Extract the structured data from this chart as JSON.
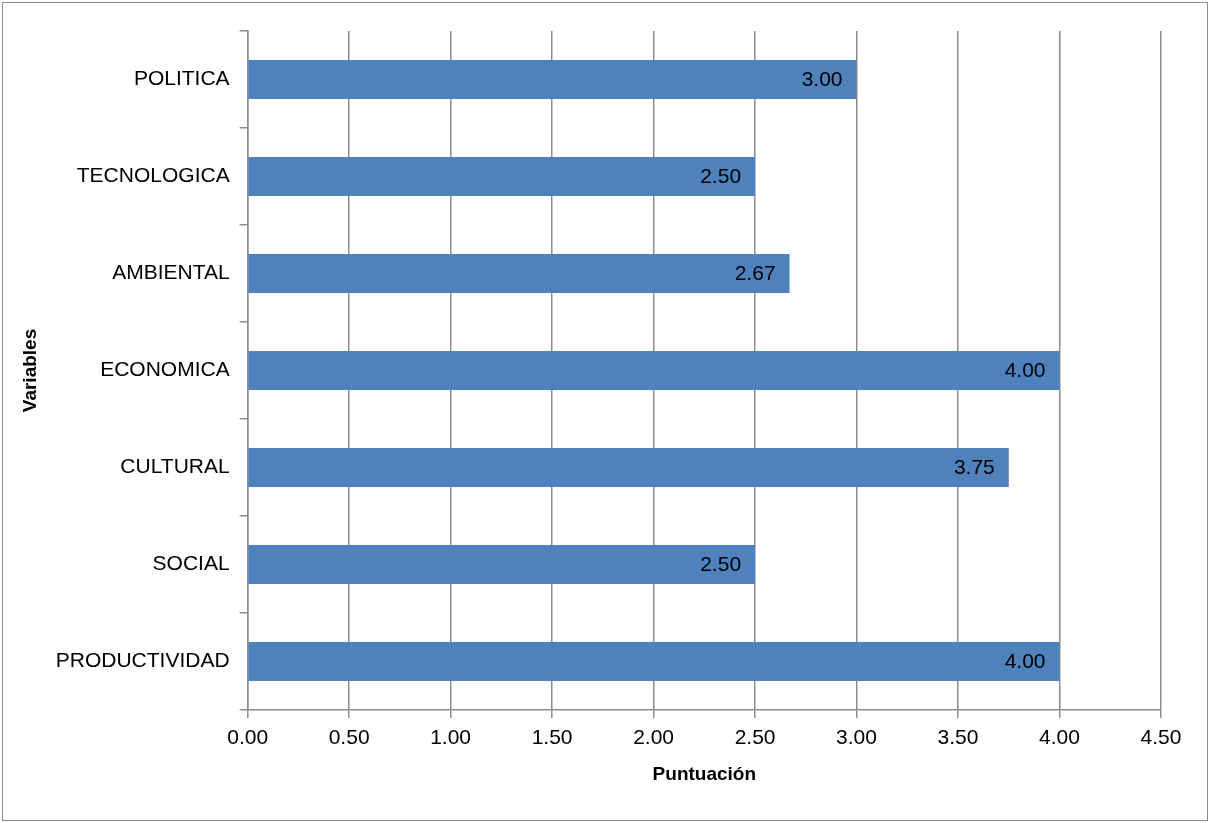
{
  "chart_data": {
    "type": "bar",
    "orientation": "horizontal",
    "xlabel": "Puntuación",
    "ylabel": "Variables",
    "categories": [
      "POLITICA",
      "TECNOLOGICA",
      "AMBIENTAL",
      "ECONOMICA",
      "CULTURAL",
      "SOCIAL",
      "PRODUCTIVIDAD"
    ],
    "values": [
      3.0,
      2.5,
      2.67,
      4.0,
      3.75,
      2.5,
      4.0
    ],
    "value_labels": [
      "3.00",
      "2.50",
      "2.67",
      "4.00",
      "3.75",
      "2.50",
      "4.00"
    ],
    "color": "#4f81bd",
    "xlim": [
      0,
      4.5
    ],
    "xticks": [
      {
        "value": 0,
        "label": "0.00"
      },
      {
        "value": 0.5,
        "label": "0.50"
      },
      {
        "value": 1,
        "label": "1.00"
      },
      {
        "value": 1.5,
        "label": "1.50"
      },
      {
        "value": 2,
        "label": "2.00"
      },
      {
        "value": 2.5,
        "label": "2.50"
      },
      {
        "value": 3,
        "label": "3.00"
      },
      {
        "value": 3.5,
        "label": "3.50"
      },
      {
        "value": 4,
        "label": "4.00"
      },
      {
        "value": 4.5,
        "label": "4.50"
      }
    ],
    "grid": "x",
    "legend": false
  }
}
